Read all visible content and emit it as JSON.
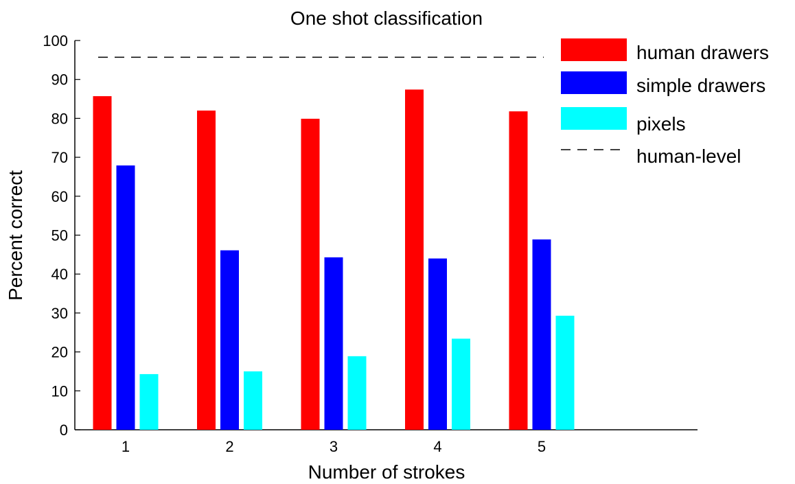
{
  "chart_data": {
    "type": "bar",
    "title": "One shot classification",
    "xlabel": "Number of strokes",
    "ylabel": "Percent correct",
    "categories": [
      "1",
      "2",
      "3",
      "4",
      "5"
    ],
    "ylim": [
      0,
      100
    ],
    "yticks": [
      0,
      10,
      20,
      30,
      40,
      50,
      60,
      70,
      80,
      90,
      100
    ],
    "grid": false,
    "legend_position": "top-right",
    "series": [
      {
        "name": "human drawers",
        "color": "#ff0000",
        "values": [
          85.7,
          82.0,
          79.9,
          87.4,
          81.8
        ]
      },
      {
        "name": "simple drawers",
        "color": "#0000ff",
        "values": [
          67.9,
          46.1,
          44.3,
          44.0,
          48.9
        ]
      },
      {
        "name": "pixels",
        "color": "#00ffff",
        "values": [
          14.3,
          15.0,
          18.9,
          23.4,
          29.3
        ]
      }
    ],
    "reference_lines": [
      {
        "name": "human-level",
        "value": 95.7,
        "style": "dashed",
        "color": "#000000"
      }
    ]
  }
}
